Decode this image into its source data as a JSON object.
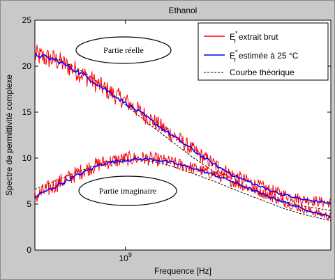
{
  "chart_data": {
    "type": "line",
    "title": "Ethanol",
    "xlabel": "Frequence [Hz]",
    "ylabel": "Spectre de permittivité complexe",
    "x_scale": "log",
    "xlim": [
      400000000,
      8000000000
    ],
    "ylim": [
      0,
      25
    ],
    "y_ticks": [
      0,
      5,
      10,
      15,
      20,
      25
    ],
    "x_tick_value": 1000000000,
    "x_tick_base": "10",
    "x_tick_exponent": "9",
    "grid": false,
    "legend_position": "top-right",
    "legend": [
      {
        "label_main": "E",
        "label_sup": "*",
        "label_sub": "r",
        "label_rest": " extrait brut",
        "color": "#ff0000",
        "style": "solid"
      },
      {
        "label_main": "E",
        "label_sup": "*",
        "label_sub": "r",
        "label_rest": " estimée à 25 °C",
        "color": "#0000ff",
        "style": "solid"
      },
      {
        "label_main": "",
        "label_sup": "",
        "label_sub": "",
        "label_rest": "Courbe théorique",
        "color": "#000000",
        "style": "dashed"
      }
    ],
    "annotations": [
      {
        "text": "Partie réelle"
      },
      {
        "text": "Partie imaginaire"
      }
    ],
    "series": [
      {
        "part": "reelle",
        "x": [
          400000000,
          500000000,
          600000000,
          700000000,
          800000000,
          1000000000,
          1200000000,
          1400000000,
          1600000000,
          2000000000,
          2500000000,
          3000000000,
          4000000000,
          5000000000,
          6000000000,
          8000000000
        ],
        "extrait_brut": [
          21.2,
          20.6,
          19.6,
          18.6,
          17.6,
          16.2,
          14.8,
          13.6,
          12.6,
          10.8,
          9.2,
          8.1,
          6.8,
          6.0,
          5.5,
          5.1
        ],
        "estimee_25C": [
          21.3,
          20.6,
          19.6,
          18.6,
          17.6,
          16.0,
          14.7,
          13.5,
          12.5,
          10.8,
          9.2,
          8.1,
          6.8,
          6.0,
          5.5,
          5.1
        ],
        "courbe_theorique": [
          21.4,
          20.8,
          19.9,
          18.9,
          17.8,
          15.8,
          14.2,
          12.9,
          11.8,
          10.0,
          8.4,
          7.3,
          6.0,
          5.3,
          4.8,
          4.3
        ]
      },
      {
        "part": "imaginaire",
        "x": [
          400000000,
          500000000,
          600000000,
          700000000,
          800000000,
          1000000000,
          1200000000,
          1400000000,
          1600000000,
          2000000000,
          2500000000,
          3000000000,
          4000000000,
          5000000000,
          6000000000,
          8000000000
        ],
        "extrait_brut": [
          5.8,
          7.2,
          8.2,
          9.0,
          9.5,
          9.9,
          10.0,
          9.8,
          9.5,
          8.9,
          8.2,
          7.4,
          6.2,
          5.2,
          4.5,
          3.6
        ],
        "estimee_25C": [
          5.8,
          7.0,
          8.0,
          8.8,
          9.4,
          9.8,
          9.9,
          9.8,
          9.5,
          8.9,
          8.1,
          7.4,
          6.1,
          5.2,
          4.5,
          3.6
        ],
        "courbe_theorique": [
          6.6,
          7.6,
          8.4,
          9.0,
          9.5,
          9.9,
          9.8,
          9.5,
          9.1,
          8.3,
          7.4,
          6.6,
          5.4,
          4.5,
          3.9,
          3.2
        ]
      }
    ]
  }
}
